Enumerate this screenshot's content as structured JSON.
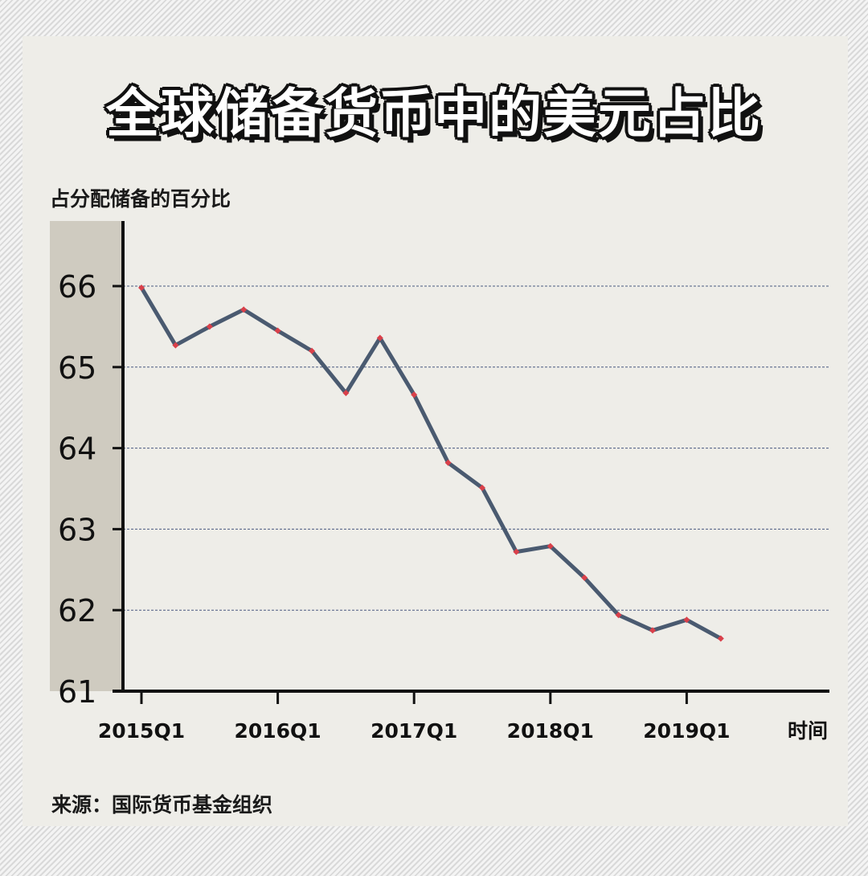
{
  "title": "全球储备货币中的美元占比",
  "source": "来源：国际货币基金组织",
  "chart_data": {
    "type": "line",
    "title": "全球储备货币中的美元占比",
    "ylabel": "占分配储备的百分比",
    "xlabel": "时间",
    "ylim": [
      61,
      66.8
    ],
    "yticks": [
      61,
      62,
      63,
      64,
      65,
      66
    ],
    "grid": true,
    "x": [
      "2015Q1",
      "2015Q2",
      "2015Q3",
      "2015Q4",
      "2016Q1",
      "2016Q2",
      "2016Q3",
      "2016Q4",
      "2017Q1",
      "2017Q2",
      "2017Q3",
      "2017Q4",
      "2018Q1",
      "2018Q2",
      "2018Q3",
      "2018Q4",
      "2019Q1",
      "2019Q2"
    ],
    "xtick_labels": [
      "2015Q1",
      "2016Q1",
      "2017Q1",
      "2018Q1",
      "2019Q1"
    ],
    "values": [
      65.98,
      65.27,
      65.5,
      65.71,
      65.45,
      65.2,
      64.68,
      65.36,
      64.66,
      63.82,
      63.51,
      62.72,
      62.79,
      62.4,
      61.94,
      61.75,
      61.88,
      61.65
    ],
    "colors": {
      "line": "#4a5a70",
      "marker": "#d9404a",
      "band": "#cfcbc0"
    }
  }
}
